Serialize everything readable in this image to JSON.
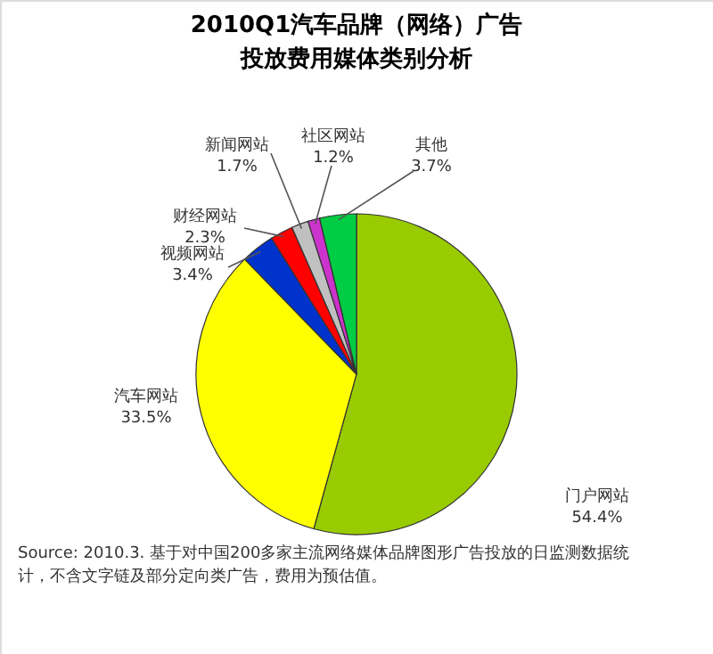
{
  "chart_data": {
    "type": "pie",
    "title": [
      "2010Q1汽车品牌（网络）广告",
      "投放费用媒体类别分析"
    ],
    "categories": [
      "门户网站",
      "汽车网站",
      "视频网站",
      "财经网站",
      "新闻网站",
      "社区网站",
      "其他"
    ],
    "values": [
      54.4,
      33.5,
      3.4,
      2.3,
      1.7,
      1.2,
      3.7
    ],
    "value_labels": [
      "54.4%",
      "33.5%",
      "3.4%",
      "2.3%",
      "1.7%",
      "1.2%",
      "3.7%"
    ],
    "colors": [
      "#99cc00",
      "#ffff00",
      "#0033cc",
      "#ff0000",
      "#c0c0c0",
      "#cc33cc",
      "#00cc44"
    ],
    "annotations": [
      "Source: 2010.3. 基于对中国200多家主流网络媒体品牌图形广告投放的日监测数据统计，不含文字链及部分定向类广告，费用为预估值。"
    ]
  }
}
